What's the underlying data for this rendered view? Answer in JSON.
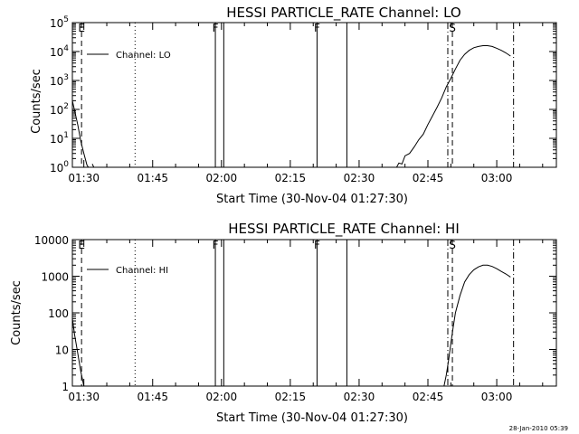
{
  "footer": {
    "timestamp": "28-Jan-2010 05:39"
  },
  "chart_data": [
    {
      "type": "line",
      "title": "HESSI PARTICLE_RATE Channel: LO",
      "xlabel": "Start Time (30-Nov-04 01:27:30)",
      "ylabel": "Counts/sec",
      "yscale": "log",
      "xlim": [
        "01:27:30",
        "03:13:00"
      ],
      "ylim": [
        1,
        100000
      ],
      "x_ticks": [
        "01:30",
        "01:45",
        "02:00",
        "02:15",
        "02:30",
        "02:45",
        "03:00"
      ],
      "y_ticks": [
        {
          "v": 1,
          "base": "10",
          "exp": "0"
        },
        {
          "v": 10,
          "base": "10",
          "exp": "1"
        },
        {
          "v": 100,
          "base": "10",
          "exp": "2"
        },
        {
          "v": 1000,
          "base": "10",
          "exp": "3"
        },
        {
          "v": 10000,
          "base": "10",
          "exp": "4"
        },
        {
          "v": 100000,
          "base": "10",
          "exp": "5"
        }
      ],
      "legend": {
        "label": "Channel: LO",
        "position": "top-left"
      },
      "series": [
        {
          "name": "Channel: LO",
          "segments": [
            [
              [
                "01:27:30",
                200
              ],
              [
                "01:28:00",
                90
              ],
              [
                "01:28:40",
                30
              ],
              [
                "01:29:20",
                8
              ],
              [
                "01:30:00",
                3
              ],
              [
                "01:30:40",
                1.2
              ],
              [
                "01:31:00",
                1
              ]
            ],
            [
              [
                "01:31:50",
                1.3
              ],
              [
                "01:32:10",
                1
              ]
            ],
            [
              [
                "02:38:10",
                1
              ],
              [
                "02:38:40",
                1.4
              ],
              [
                "02:39:20",
                1.3
              ],
              [
                "02:40:00",
                2.5
              ],
              [
                "02:41:00",
                3
              ],
              [
                "02:42:00",
                5
              ],
              [
                "02:43:00",
                9
              ],
              [
                "02:44:00",
                14
              ],
              [
                "02:45:00",
                30
              ],
              [
                "02:46:00",
                60
              ],
              [
                "02:47:00",
                120
              ],
              [
                "02:48:00",
                250
              ],
              [
                "02:49:00",
                600
              ],
              [
                "02:50:00",
                1200
              ],
              [
                "02:51:00",
                2500
              ],
              [
                "02:52:00",
                5000
              ],
              [
                "02:53:00",
                8000
              ],
              [
                "02:54:00",
                11000
              ],
              [
                "02:55:00",
                13500
              ],
              [
                "02:56:00",
                15000
              ],
              [
                "02:57:00",
                16000
              ],
              [
                "02:58:00",
                16000
              ],
              [
                "02:59:00",
                15000
              ],
              [
                "03:00:00",
                13000
              ],
              [
                "03:01:00",
                11000
              ],
              [
                "03:02:00",
                9000
              ],
              [
                "03:03:00",
                7000
              ]
            ]
          ]
        }
      ],
      "markers": [
        {
          "type": "dashed",
          "time": "01:29:30",
          "label": "E"
        },
        {
          "type": "dotted",
          "time": "01:41:10"
        },
        {
          "type": "solid",
          "time": "01:58:40",
          "label": "F"
        },
        {
          "type": "solid",
          "time": "02:00:30"
        },
        {
          "type": "solid",
          "time": "02:20:50",
          "label": "F"
        },
        {
          "type": "solid",
          "time": "02:27:20"
        },
        {
          "type": "dashdot",
          "time": "02:49:20"
        },
        {
          "type": "dashed",
          "time": "02:50:20",
          "label": "S"
        },
        {
          "type": "dashdot",
          "time": "03:03:40"
        }
      ]
    },
    {
      "type": "line",
      "title": "HESSI PARTICLE_RATE Channel: HI",
      "xlabel": "Start Time (30-Nov-04 01:27:30)",
      "ylabel": "Counts/sec",
      "yscale": "log",
      "xlim": [
        "01:27:30",
        "03:13:00"
      ],
      "ylim": [
        1,
        10000
      ],
      "x_ticks": [
        "01:30",
        "01:45",
        "02:00",
        "02:15",
        "02:30",
        "02:45",
        "03:00"
      ],
      "y_ticks": [
        {
          "v": 1,
          "label": "1"
        },
        {
          "v": 10,
          "label": "10"
        },
        {
          "v": 100,
          "label": "100"
        },
        {
          "v": 1000,
          "label": "1000"
        },
        {
          "v": 10000,
          "label": "10000"
        }
      ],
      "legend": {
        "label": "Channel: HI",
        "position": "top-left"
      },
      "series": [
        {
          "name": "Channel: HI",
          "segments": [
            [
              [
                "01:27:30",
                70
              ],
              [
                "01:28:00",
                25
              ],
              [
                "01:28:40",
                8
              ],
              [
                "01:29:20",
                2.5
              ],
              [
                "01:30:00",
                1
              ]
            ],
            [
              [
                "02:48:30",
                1
              ],
              [
                "02:49:00",
                2
              ],
              [
                "02:49:30",
                5
              ],
              [
                "02:50:00",
                15
              ],
              [
                "02:50:30",
                40
              ],
              [
                "02:51:00",
                100
              ],
              [
                "02:52:00",
                300
              ],
              [
                "02:53:00",
                700
              ],
              [
                "02:54:00",
                1100
              ],
              [
                "02:55:00",
                1500
              ],
              [
                "02:56:00",
                1800
              ],
              [
                "02:57:00",
                2000
              ],
              [
                "02:58:00",
                2000
              ],
              [
                "02:59:00",
                1850
              ],
              [
                "03:00:00",
                1600
              ],
              [
                "03:01:00",
                1350
              ],
              [
                "03:02:00",
                1150
              ],
              [
                "03:03:00",
                950
              ]
            ]
          ]
        }
      ],
      "markers": [
        {
          "type": "dashed",
          "time": "01:29:30",
          "label": "E"
        },
        {
          "type": "dotted",
          "time": "01:41:10"
        },
        {
          "type": "solid",
          "time": "01:58:40",
          "label": "F"
        },
        {
          "type": "solid",
          "time": "02:00:30"
        },
        {
          "type": "solid",
          "time": "02:20:50",
          "label": "F"
        },
        {
          "type": "solid",
          "time": "02:27:20"
        },
        {
          "type": "dashdot",
          "time": "02:49:20"
        },
        {
          "type": "dashed",
          "time": "02:50:20",
          "label": "S"
        },
        {
          "type": "dashdot",
          "time": "03:03:40"
        }
      ]
    }
  ]
}
